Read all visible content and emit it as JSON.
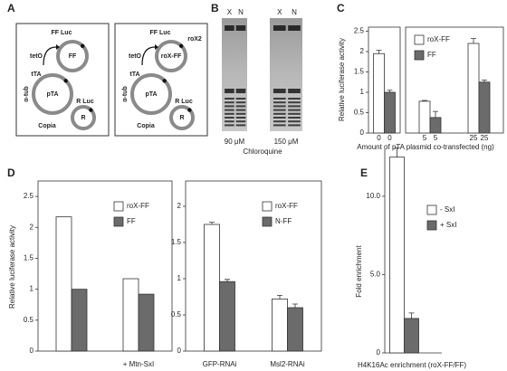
{
  "panel_labels": [
    "A",
    "B",
    "C",
    "D",
    "E"
  ],
  "diagram": {
    "constructs": [
      {
        "ff_luc": "FF Luc",
        "tetO": "tetO",
        "ff": "FF",
        "tta": "tTA",
        "tub": "α-tub",
        "pta": "pTA",
        "r_luc": "R Luc",
        "copia": "Copia",
        "r": "R"
      },
      {
        "ff_luc": "FF Luc",
        "rox2": "roX2",
        "tetO": "tetO",
        "ff": "roX-FF",
        "tta": "tTA",
        "tub": "α-tub",
        "pta": "pTA",
        "r_luc": "R Luc",
        "copia": "Copia",
        "r": "R"
      }
    ]
  },
  "gel": {
    "lanes": [
      "X",
      "N"
    ],
    "conditions": [
      "90 μM",
      "150 μM"
    ],
    "xlabel": "Chloroquine"
  },
  "chart_data": [
    {
      "type": "bar",
      "ylabel": "Relative luciferase activity",
      "xlabel": "Amount of pTA plasmid co-transfected (ng)",
      "categories": [
        "0",
        "5",
        "25"
      ],
      "ylim": [
        0,
        2.6
      ],
      "yticks": [
        0,
        0.5,
        1,
        1.5,
        2,
        2.5
      ],
      "series": [
        {
          "name": "roX-FF",
          "color": "#ffffff",
          "values": [
            1.95,
            0.78,
            2.2
          ],
          "errors": [
            0.08,
            0.02,
            0.12
          ]
        },
        {
          "name": "FF",
          "color": "#6b6b6b",
          "values": [
            1.0,
            0.38,
            1.25
          ],
          "errors": [
            0.05,
            0.15,
            0.05
          ]
        }
      ]
    },
    {
      "type": "bar",
      "ylabel": "Relative luciferase activity",
      "categories": [
        null,
        "+ Mtn-SxI"
      ],
      "ylim": [
        0,
        2.75
      ],
      "yticks": [
        0,
        0.5,
        1,
        1.5,
        2,
        2.5
      ],
      "series": [
        {
          "name": "roX-FF",
          "color": "#ffffff",
          "values": [
            2.17,
            1.17
          ]
        },
        {
          "name": "FF",
          "color": "#6b6b6b",
          "values": [
            1.0,
            0.92
          ]
        }
      ]
    },
    {
      "type": "bar",
      "categories": [
        "GFP-RNAi",
        "Msl2-RNAi"
      ],
      "ylim": [
        0,
        2.35
      ],
      "yticks": [
        0,
        0.5,
        1,
        1.5,
        2
      ],
      "series": [
        {
          "name": "roX-FF",
          "color": "#ffffff",
          "values": [
            1.75,
            0.72
          ],
          "errors": [
            0.03,
            0.05
          ]
        },
        {
          "name": "N-FF",
          "color": "#6b6b6b",
          "values": [
            0.96,
            0.6
          ],
          "errors": [
            0.03,
            0.05
          ]
        }
      ]
    },
    {
      "type": "bar",
      "ylabel": "Fold enrichment",
      "xlabel": "H4K16Ac enrichment (roX-FF/FF)",
      "categories": [
        null
      ],
      "ylim": [
        0,
        13
      ],
      "yticks": [
        0,
        {
          "value": 5,
          "label": "5.0"
        },
        {
          "value": 10,
          "label": "10.0"
        }
      ],
      "series": [
        {
          "name": "- SxI",
          "color": "#ffffff",
          "values": [
            12.5
          ],
          "errors": [
            0.6
          ]
        },
        {
          "name": "+ SxI",
          "color": "#6b6b6b",
          "values": [
            2.2
          ],
          "errors": [
            0.35
          ]
        }
      ]
    }
  ]
}
